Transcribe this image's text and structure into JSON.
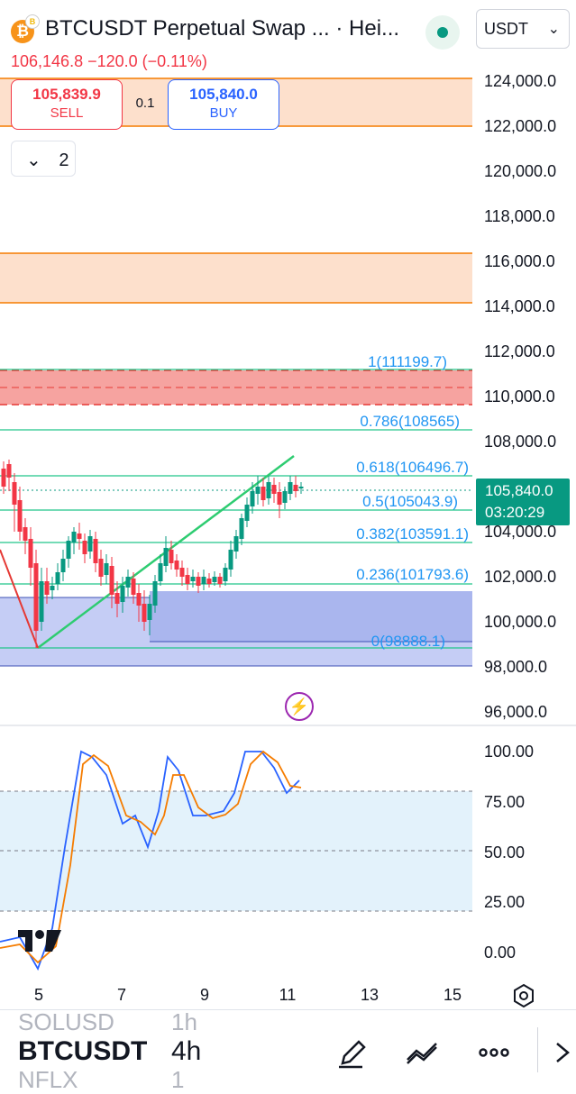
{
  "header": {
    "title": "BTCUSDT Perpetual Swap ... · Hei...",
    "currency": "USDT",
    "coin_badge": "B",
    "ticker_line": "106,146.8  −120.0 (−0.11%)",
    "colors": {
      "up": "#089981",
      "down": "#f23645",
      "accent": "#2962ff"
    }
  },
  "trade": {
    "sell_price": "105,839.9",
    "sell_label": "SELL",
    "quantity": "0.1",
    "buy_price": "105,840.0",
    "buy_label": "BUY"
  },
  "panel": {
    "collapse_count": "2",
    "collapse_icon": "chevron-down-icon"
  },
  "price_axis": {
    "ticks": [
      "124,000.0",
      "122,000.0",
      "120,000.0",
      "118,000.0",
      "116,000.0",
      "114,000.0",
      "112,000.0",
      "110,000.0",
      "108,000.0",
      "104,000.0",
      "102,000.0",
      "100,000.0",
      "98,000.0",
      "96,000.0"
    ],
    "current_price": "105,840.0",
    "countdown": "03:20:29"
  },
  "fib_labels": [
    "1(111199.7)",
    "0.786(108565)",
    "0.618(106496.7)",
    "0.5(105043.9)",
    "0.382(103591.1)",
    "0.236(101793.6)",
    "0(98888.1)"
  ],
  "indicator_axis": {
    "ticks": [
      "100.00",
      "75.00",
      "50.00",
      "25.00",
      "0.00"
    ]
  },
  "time_axis": {
    "ticks": [
      "5",
      "7",
      "9",
      "11",
      "13",
      "15"
    ]
  },
  "bottom": {
    "symbol_prev": "SOLUSD",
    "tf_prev": "1h",
    "symbol": "BTCUSDT",
    "timeframe": "4h",
    "symbol_next": "NFLX",
    "tf_next": "1",
    "icons": [
      "pencil-icon",
      "drawings-icon",
      "more-icon"
    ]
  }
}
